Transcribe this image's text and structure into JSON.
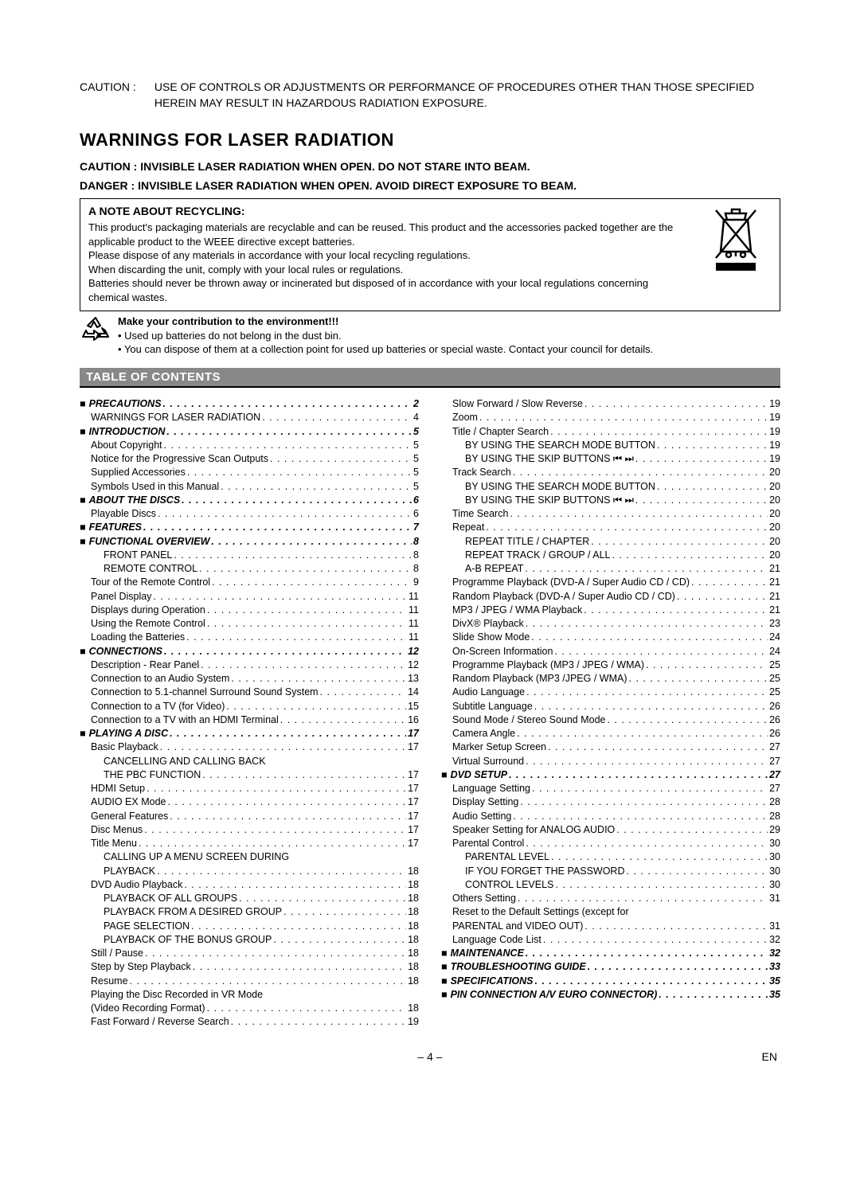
{
  "caution_top": {
    "label": "CAUTION :",
    "body": "USE OF CONTROLS OR ADJUSTMENTS OR PERFORMANCE OF PROCEDURES OTHER THAN THOSE SPECIFIED HEREIN MAY RESULT IN HAZARDOUS RADIATION EXPOSURE."
  },
  "warnings_heading": "WARNINGS FOR LASER RADIATION",
  "caution_line": "CAUTION :   INVISIBLE LASER RADIATION WHEN OPEN. DO NOT STARE INTO BEAM.",
  "danger_line": "DANGER :    INVISIBLE LASER RADIATION WHEN OPEN. AVOID DIRECT EXPOSURE TO BEAM.",
  "recycling": {
    "title": "A NOTE ABOUT RECYCLING:",
    "lines": [
      "This product's packaging materials are recyclable and can be reused. This product and the accessories packed together are the applicable product to the WEEE directive except batteries.",
      "Please dispose of any materials in accordance with your local recycling regulations.",
      "When discarding the unit, comply with your local rules or regulations.",
      "Batteries should never be thrown away or incinerated but disposed of in accordance with your local regulations concerning chemical wastes."
    ]
  },
  "environment": {
    "bold": "Make your contribution to the environment!!!",
    "bullets": [
      "Used up batteries do not belong in the dust bin.",
      "You can dispose of them at a collection point for used up batteries or special waste. Contact your council for details."
    ]
  },
  "toc_label": "TABLE OF CONTENTS",
  "footer": {
    "page": "– 4 –",
    "lang": "EN"
  },
  "left": [
    {
      "t": "sec",
      "label": "PRECAUTIONS",
      "pg": "2"
    },
    {
      "t": "ind1",
      "label": "WARNINGS FOR LASER RADIATION",
      "pg": "4"
    },
    {
      "t": "sec",
      "label": "INTRODUCTION",
      "pg": "5"
    },
    {
      "t": "ind1",
      "label": "About Copyright",
      "pg": "5"
    },
    {
      "t": "ind1",
      "label": "Notice for the Progressive Scan Outputs",
      "pg": "5"
    },
    {
      "t": "ind1",
      "label": "Supplied Accessories",
      "pg": "5"
    },
    {
      "t": "ind1",
      "label": "Symbols Used in this Manual",
      "pg": "5"
    },
    {
      "t": "sec",
      "label": "ABOUT THE DISCS",
      "pg": "6"
    },
    {
      "t": "ind1",
      "label": "Playable Discs",
      "pg": "6"
    },
    {
      "t": "sec",
      "label": "FEATURES",
      "pg": "7"
    },
    {
      "t": "sec",
      "label": "FUNCTIONAL OVERVIEW",
      "pg": "8"
    },
    {
      "t": "ind2",
      "label": "FRONT PANEL",
      "pg": "8"
    },
    {
      "t": "ind2",
      "label": "REMOTE CONTROL",
      "pg": "8"
    },
    {
      "t": "ind1",
      "label": "Tour of the Remote Control",
      "pg": "9"
    },
    {
      "t": "ind1",
      "label": "Panel Display",
      "pg": "11"
    },
    {
      "t": "ind1",
      "label": "Displays during Operation",
      "pg": "11"
    },
    {
      "t": "ind1",
      "label": "Using the Remote Control",
      "pg": "11"
    },
    {
      "t": "ind1",
      "label": "Loading the Batteries",
      "pg": "11"
    },
    {
      "t": "sec",
      "label": "CONNECTIONS",
      "pg": "12"
    },
    {
      "t": "ind1",
      "label": "Description - Rear Panel",
      "pg": "12"
    },
    {
      "t": "ind1",
      "label": "Connection to an Audio System",
      "pg": "13"
    },
    {
      "t": "ind1",
      "label": "Connection to 5.1-channel Surround Sound System",
      "pg": "14"
    },
    {
      "t": "ind1",
      "label": "Connection to a TV (for Video)",
      "pg": "15"
    },
    {
      "t": "ind1",
      "label": "Connection to a TV with an HDMI Terminal",
      "pg": "16"
    },
    {
      "t": "sec",
      "label": "PLAYING A DISC",
      "pg": "17"
    },
    {
      "t": "ind1",
      "label": "Basic Playback",
      "pg": "17"
    },
    {
      "t": "ind2",
      "label": "CANCELLING AND CALLING BACK",
      "pg": ""
    },
    {
      "t": "ind2",
      "label": "THE PBC FUNCTION",
      "pg": "17"
    },
    {
      "t": "ind1",
      "label": "HDMI Setup",
      "pg": "17"
    },
    {
      "t": "ind1",
      "label": "AUDIO EX Mode",
      "pg": "17"
    },
    {
      "t": "ind1",
      "label": "General Features",
      "pg": "17"
    },
    {
      "t": "ind1",
      "label": "Disc Menus",
      "pg": "17"
    },
    {
      "t": "ind1",
      "label": "Title Menu",
      "pg": "17"
    },
    {
      "t": "ind2",
      "label": "CALLING UP A MENU SCREEN DURING",
      "pg": ""
    },
    {
      "t": "ind2",
      "label": "PLAYBACK",
      "pg": "18"
    },
    {
      "t": "ind1",
      "label": "DVD Audio Playback",
      "pg": "18"
    },
    {
      "t": "ind2",
      "label": "PLAYBACK OF ALL GROUPS",
      "pg": "18"
    },
    {
      "t": "ind2",
      "label": "PLAYBACK FROM A DESIRED GROUP",
      "pg": "18"
    },
    {
      "t": "ind2",
      "label": "PAGE SELECTION",
      "pg": "18"
    },
    {
      "t": "ind2",
      "label": "PLAYBACK OF THE BONUS GROUP",
      "pg": "18"
    },
    {
      "t": "ind1",
      "label": "Still / Pause",
      "pg": "18"
    },
    {
      "t": "ind1",
      "label": "Step by Step Playback",
      "pg": "18"
    },
    {
      "t": "ind1",
      "label": "Resume",
      "pg": "18"
    },
    {
      "t": "ind1",
      "label": "Playing the Disc Recorded in VR Mode",
      "pg": ""
    },
    {
      "t": "ind1",
      "label": "(Video Recording Format)",
      "pg": "18"
    },
    {
      "t": "ind1",
      "label": "Fast Forward / Reverse Search",
      "pg": "19"
    }
  ],
  "right": [
    {
      "t": "ind1",
      "label": "Slow Forward / Slow Reverse",
      "pg": "19"
    },
    {
      "t": "ind1",
      "label": "Zoom",
      "pg": "19"
    },
    {
      "t": "ind1",
      "label": "Title / Chapter Search",
      "pg": "19"
    },
    {
      "t": "ind2",
      "label": "BY USING THE SEARCH MODE BUTTON",
      "pg": "19"
    },
    {
      "t": "ind2",
      "label": "BY USING THE SKIP BUTTONS ⏮ ⏭",
      "pg": "19"
    },
    {
      "t": "ind1",
      "label": "Track Search",
      "pg": "20"
    },
    {
      "t": "ind2",
      "label": "BY USING THE SEARCH MODE BUTTON",
      "pg": "20"
    },
    {
      "t": "ind2",
      "label": "BY USING THE SKIP BUTTONS ⏮ ⏭",
      "pg": "20"
    },
    {
      "t": "ind1",
      "label": "Time Search",
      "pg": "20"
    },
    {
      "t": "ind1",
      "label": "Repeat",
      "pg": "20"
    },
    {
      "t": "ind2",
      "label": "REPEAT TITLE / CHAPTER",
      "pg": "20"
    },
    {
      "t": "ind2",
      "label": "REPEAT TRACK / GROUP / ALL",
      "pg": "20"
    },
    {
      "t": "ind2",
      "label": "A-B REPEAT",
      "pg": "21"
    },
    {
      "t": "ind1",
      "label": "Programme Playback (DVD-A / Super Audio CD / CD)",
      "pg": "21"
    },
    {
      "t": "ind1",
      "label": "Random Playback (DVD-A / Super Audio CD / CD)",
      "pg": "21"
    },
    {
      "t": "ind1",
      "label": "MP3 / JPEG / WMA Playback",
      "pg": "21"
    },
    {
      "t": "ind1",
      "label": "DivX® Playback",
      "pg": "23"
    },
    {
      "t": "ind1",
      "label": "Slide Show Mode",
      "pg": "24"
    },
    {
      "t": "ind1",
      "label": "On-Screen Information",
      "pg": "24"
    },
    {
      "t": "ind1",
      "label": "Programme Playback (MP3 / JPEG / WMA)",
      "pg": "25"
    },
    {
      "t": "ind1",
      "label": "Random Playback (MP3 /JPEG / WMA)",
      "pg": "25"
    },
    {
      "t": "ind1",
      "label": "Audio Language",
      "pg": "25"
    },
    {
      "t": "ind1",
      "label": "Subtitle Language",
      "pg": "26"
    },
    {
      "t": "ind1",
      "label": "Sound Mode / Stereo Sound Mode",
      "pg": "26"
    },
    {
      "t": "ind1",
      "label": "Camera Angle",
      "pg": "26"
    },
    {
      "t": "ind1",
      "label": "Marker Setup Screen",
      "pg": "27"
    },
    {
      "t": "ind1",
      "label": "Virtual Surround",
      "pg": "27"
    },
    {
      "t": "sec",
      "label": "DVD SETUP",
      "pg": "27"
    },
    {
      "t": "ind1",
      "label": "Language Setting",
      "pg": "27"
    },
    {
      "t": "ind1",
      "label": "Display Setting",
      "pg": "28"
    },
    {
      "t": "ind1",
      "label": "Audio Setting",
      "pg": "28"
    },
    {
      "t": "ind1",
      "label": "Speaker Setting for ANALOG AUDIO",
      "pg": "29"
    },
    {
      "t": "ind1",
      "label": "Parental Control",
      "pg": "30"
    },
    {
      "t": "ind2",
      "label": "PARENTAL LEVEL",
      "pg": "30"
    },
    {
      "t": "ind2",
      "label": "IF YOU FORGET THE PASSWORD",
      "pg": "30"
    },
    {
      "t": "ind2",
      "label": "CONTROL LEVELS",
      "pg": "30"
    },
    {
      "t": "ind1",
      "label": "Others Setting",
      "pg": "31"
    },
    {
      "t": "ind1",
      "label": "Reset to the Default Settings (except for",
      "pg": ""
    },
    {
      "t": "ind1",
      "label": "PARENTAL and VIDEO OUT)",
      "pg": "31"
    },
    {
      "t": "ind1",
      "label": "Language Code List",
      "pg": "32"
    },
    {
      "t": "sec",
      "label": "MAINTENANCE",
      "pg": "32"
    },
    {
      "t": "sec",
      "label": "TROUBLESHOOTING GUIDE",
      "pg": "33"
    },
    {
      "t": "sec",
      "label": "SPECIFICATIONS",
      "pg": "35"
    },
    {
      "t": "sec",
      "label": "PIN CONNECTION A/V EURO CONNECTOR)",
      "pg": "35"
    }
  ]
}
